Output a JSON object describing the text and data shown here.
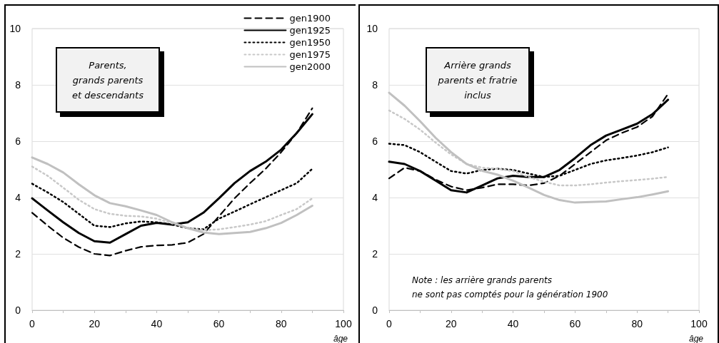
{
  "chart_data": [
    {
      "type": "line",
      "annotations": [
        "Parents,\ngrands parents\net descendants"
      ],
      "xlabel": "âge",
      "x": [
        0,
        5,
        10,
        15,
        20,
        25,
        30,
        35,
        40,
        45,
        50,
        55,
        60,
        65,
        70,
        75,
        80,
        85,
        90
      ],
      "series": [
        {
          "name": "gen1900",
          "color": "#000000",
          "line_style": "dashed",
          "values": [
            3.46,
            3.0,
            2.57,
            2.24,
            2.0,
            1.94,
            2.11,
            2.25,
            2.3,
            2.32,
            2.4,
            2.7,
            3.33,
            3.97,
            4.51,
            5.02,
            5.61,
            6.29,
            7.17
          ]
        },
        {
          "name": "gen1925",
          "color": "#000000",
          "line_style": "solid",
          "values": [
            3.97,
            3.54,
            3.12,
            2.74,
            2.45,
            2.4,
            2.7,
            3.0,
            3.1,
            3.04,
            3.12,
            3.46,
            3.97,
            4.51,
            4.94,
            5.27,
            5.7,
            6.29,
            6.96
          ]
        },
        {
          "name": "gen1950",
          "color": "#000000",
          "line_style": "dotted",
          "values": [
            4.49,
            4.18,
            3.84,
            3.42,
            3.0,
            2.95,
            3.08,
            3.15,
            3.12,
            3.04,
            2.91,
            2.87,
            3.25,
            3.5,
            3.76,
            4.01,
            4.26,
            4.51,
            5.02
          ]
        },
        {
          "name": "gen1975",
          "color": "#c8c8c8",
          "line_style": "dotted",
          "values": [
            5.1,
            4.77,
            4.35,
            3.92,
            3.59,
            3.42,
            3.35,
            3.33,
            3.25,
            3.08,
            2.93,
            2.84,
            2.87,
            2.95,
            3.04,
            3.16,
            3.38,
            3.59,
            3.97
          ]
        },
        {
          "name": "gen2000",
          "color": "#c0c0c0",
          "line_style": "solid",
          "values": [
            5.42,
            5.19,
            4.89,
            4.47,
            4.08,
            3.8,
            3.69,
            3.54,
            3.38,
            3.12,
            2.91,
            2.76,
            2.7,
            2.74,
            2.78,
            2.91,
            3.1,
            3.38,
            3.71
          ]
        }
      ],
      "xlim": [
        0,
        100
      ],
      "xticks": [
        0,
        {
          "value": 10,
          "label": null
        },
        20,
        {
          "value": 30,
          "label": null
        },
        40,
        {
          "value": 50,
          "label": null
        },
        60,
        {
          "value": 70,
          "label": null
        },
        80,
        {
          "value": 90,
          "label": null
        },
        100
      ],
      "ylim": [
        0,
        10
      ],
      "yticks": [
        0,
        2,
        4,
        6,
        8,
        10
      ],
      "grid": "y",
      "legend": "top right",
      "marker": "none"
    },
    {
      "type": "line",
      "annotations": [
        "Arrière grands\nparents et fratrie\ninclus",
        "Note : les arrière grands parents\nne sont pas comptés pour la génération 1900"
      ],
      "xlabel": "âge",
      "x": [
        0,
        5,
        10,
        15,
        20,
        25,
        30,
        35,
        40,
        45,
        50,
        55,
        60,
        65,
        70,
        75,
        80,
        85,
        90
      ],
      "series": [
        {
          "color": "#000000",
          "line_style": "dashed",
          "values": [
            4.68,
            5.06,
            4.94,
            4.64,
            4.39,
            4.26,
            4.35,
            4.47,
            4.47,
            4.43,
            4.51,
            4.77,
            5.19,
            5.61,
            6.03,
            6.29,
            6.5,
            6.88,
            7.68
          ]
        },
        {
          "color": "#000000",
          "line_style": "solid",
          "values": [
            5.27,
            5.19,
            4.94,
            4.6,
            4.26,
            4.18,
            4.43,
            4.68,
            4.77,
            4.73,
            4.73,
            4.98,
            5.4,
            5.86,
            6.2,
            6.41,
            6.62,
            6.96,
            7.47
          ]
        },
        {
          "color": "#000000",
          "line_style": "dotted",
          "values": [
            5.91,
            5.86,
            5.61,
            5.27,
            4.94,
            4.85,
            4.98,
            5.02,
            4.98,
            4.85,
            4.73,
            4.77,
            4.98,
            5.19,
            5.32,
            5.4,
            5.49,
            5.61,
            5.78
          ]
        },
        {
          "color": "#c8c8c8",
          "line_style": "dotted",
          "values": [
            7.09,
            6.79,
            6.41,
            5.95,
            5.53,
            5.19,
            5.06,
            5.02,
            4.94,
            4.73,
            4.56,
            4.43,
            4.43,
            4.47,
            4.53,
            4.58,
            4.62,
            4.67,
            4.73
          ]
        },
        {
          "color": "#c0c0c0",
          "line_style": "solid",
          "values": [
            7.72,
            7.26,
            6.71,
            6.12,
            5.61,
            5.19,
            4.95,
            4.81,
            4.6,
            4.35,
            4.09,
            3.91,
            3.82,
            3.84,
            3.86,
            3.94,
            4.01,
            4.11,
            4.22
          ]
        }
      ],
      "xlim": [
        0,
        100
      ],
      "xticks": [
        0,
        {
          "value": 10,
          "label": null
        },
        20,
        {
          "value": 30,
          "label": null
        },
        40,
        {
          "value": 50,
          "label": null
        },
        60,
        {
          "value": 70,
          "label": null
        },
        80,
        {
          "value": 90,
          "label": null
        },
        100
      ],
      "ylim": [
        0,
        10
      ],
      "yticks": [
        0,
        2,
        4,
        6,
        8,
        10
      ],
      "grid": "y",
      "marker": "none"
    }
  ]
}
